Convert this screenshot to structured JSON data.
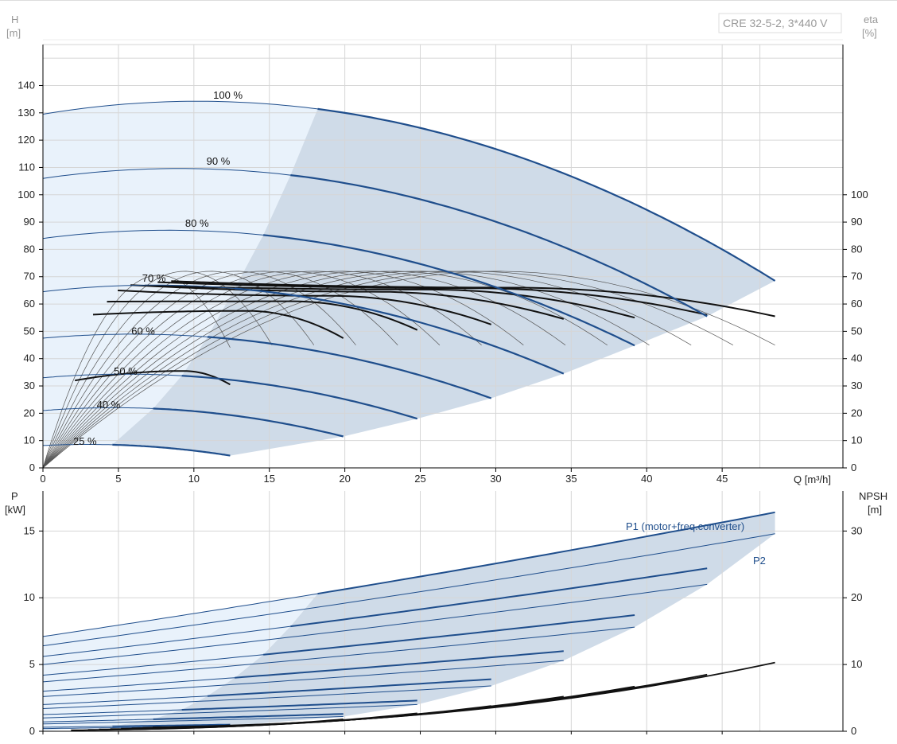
{
  "model_label": "CRE 32-5-2, 3*440 V",
  "colors": {
    "curve_blue": "#1f4e8c",
    "operating_region": "#cfdbe8",
    "light_region": "#e9f2fb",
    "grid": "#d6d6d6",
    "eff_curve": "#111111"
  },
  "chart_data": [
    {
      "type": "line",
      "panel": "pump-head",
      "xlabel": "Q [m³/h]",
      "ylabel_left": [
        "H",
        "[m]"
      ],
      "ylabel_right": [
        "eta",
        "[%]"
      ],
      "xlim": [
        0,
        53
      ],
      "ylim": [
        0,
        155
      ],
      "xticks": [
        0,
        5,
        10,
        15,
        20,
        25,
        30,
        35,
        40,
        45
      ],
      "yticks_left": [
        0,
        10,
        20,
        30,
        40,
        50,
        60,
        70,
        80,
        90,
        100,
        110,
        120,
        130,
        140
      ],
      "yticks_right": [
        0,
        10,
        20,
        30,
        40,
        50,
        60,
        70,
        80,
        90,
        100
      ],
      "speed_curves": [
        {
          "name": "100 %",
          "qmax": 48.5,
          "h0": 129.5,
          "peak_q": 6.2,
          "peak_h": 133.5,
          "end_h": 68.5,
          "qbound": 18.2
        },
        {
          "name": "90 %",
          "qmax": 44.0,
          "h0": 106,
          "peak_q": 6.0,
          "peak_h": 109.2,
          "end_h": 55.5,
          "qbound": 16.4
        },
        {
          "name": "80 %",
          "qmax": 39.2,
          "h0": 84,
          "peak_q": 5.2,
          "peak_h": 86.6,
          "end_h": 44.8,
          "qbound": 14.6
        },
        {
          "name": "70 %",
          "qmax": 34.5,
          "h0": 64.5,
          "peak_q": 4.3,
          "peak_h": 66.5,
          "end_h": 34.5,
          "qbound": 12.7
        },
        {
          "name": "60 %",
          "qmax": 29.7,
          "h0": 47.5,
          "peak_q": 3.9,
          "peak_h": 48.8,
          "end_h": 25.5,
          "qbound": 10.9
        },
        {
          "name": "50 %",
          "qmax": 24.8,
          "h0": 33,
          "peak_q": 3.2,
          "peak_h": 34.1,
          "end_h": 18.0,
          "qbound": 9.2
        },
        {
          "name": "40 %",
          "qmax": 19.9,
          "h0": 21,
          "peak_q": 2.5,
          "peak_h": 21.8,
          "end_h": 11.5,
          "qbound": 7.3
        },
        {
          "name": "25 %",
          "qmax": 12.4,
          "h0": 8.2,
          "peak_q": 1.5,
          "peak_h": 8.5,
          "end_h": 4.5,
          "qbound": 4.6
        }
      ],
      "efficiency_curves": [
        {
          "qmax": 48.5,
          "q_start": 18.2,
          "peak_q": 31.0,
          "peak_eta": 66.0,
          "end_eta": 55.5
        },
        {
          "qmax": 44.0,
          "q_start": 16.4,
          "peak_q": 28.4,
          "peak_eta": 65.8,
          "end_eta": 56.0
        },
        {
          "qmax": 39.2,
          "q_start": 14.6,
          "peak_q": 25.5,
          "peak_eta": 65.3,
          "end_eta": 55.0
        },
        {
          "qmax": 34.5,
          "q_start": 12.7,
          "peak_q": 22.0,
          "peak_eta": 64.5,
          "end_eta": 54.5
        },
        {
          "qmax": 29.7,
          "q_start": 10.9,
          "peak_q": 19.0,
          "peak_eta": 63.0,
          "end_eta": 52.5
        },
        {
          "qmax": 24.8,
          "q_start": 9.2,
          "peak_q": 16.5,
          "peak_eta": 61.0,
          "end_eta": 50.5
        },
        {
          "qmax": 19.9,
          "q_start": 7.3,
          "peak_q": 13.5,
          "peak_eta": 57.5,
          "end_eta": 47.5
        },
        {
          "qmax": 12.4,
          "q_start": 4.6,
          "peak_q": 9.3,
          "peak_eta": 35.5,
          "end_eta": 30.5
        }
      ],
      "eta_envelope": {
        "eta_max": 72.0
      }
    },
    {
      "type": "line",
      "panel": "power-npsh",
      "ylabel_left": [
        "P",
        "[kW]"
      ],
      "ylabel_right": [
        "NPSH",
        "[m]"
      ],
      "xlim": [
        0,
        53
      ],
      "ylim": [
        0,
        18
      ],
      "yticks_left": [
        0,
        5,
        10,
        15
      ],
      "yticks_right": [
        0,
        10,
        20,
        30
      ],
      "npsh_scale_max": 36,
      "p1_label": "P1 (motor+freq.converter)",
      "p2_label": "P2",
      "p1_curves": [
        {
          "qmax": 48.5,
          "p0": 7.1,
          "pend": 16.4,
          "qbound": 18.2
        },
        {
          "qmax": 44.0,
          "p0": 5.6,
          "pend": 12.2,
          "qbound": 16.4
        },
        {
          "qmax": 39.2,
          "p0": 4.2,
          "pend": 8.7,
          "qbound": 14.6
        },
        {
          "qmax": 34.5,
          "p0": 3.0,
          "pend": 6.0,
          "qbound": 12.7
        },
        {
          "qmax": 29.7,
          "p0": 2.0,
          "pend": 3.9,
          "qbound": 10.9
        },
        {
          "qmax": 24.8,
          "p0": 1.25,
          "pend": 2.3,
          "qbound": 9.2
        },
        {
          "qmax": 19.9,
          "p0": 0.7,
          "pend": 1.3,
          "qbound": 7.3
        },
        {
          "qmax": 12.4,
          "p0": 0.3,
          "pend": 0.5,
          "qbound": 4.6
        }
      ],
      "p2_curves": [
        {
          "qmax": 48.5,
          "p0": 6.4,
          "pend": 14.8
        },
        {
          "qmax": 44.0,
          "p0": 5.0,
          "pend": 11.0
        },
        {
          "qmax": 39.2,
          "p0": 3.7,
          "pend": 7.8
        },
        {
          "qmax": 34.5,
          "p0": 2.6,
          "pend": 5.3
        },
        {
          "qmax": 29.7,
          "p0": 1.7,
          "pend": 3.4
        },
        {
          "qmax": 24.8,
          "p0": 1.0,
          "pend": 2.0
        },
        {
          "qmax": 19.9,
          "p0": 0.55,
          "pend": 1.1
        },
        {
          "qmax": 12.4,
          "p0": 0.2,
          "pend": 0.4
        }
      ],
      "npsh_curves": [
        {
          "qmax": 48.5,
          "n0": 0.5,
          "nend": 10.3
        },
        {
          "qmax": 44.0,
          "n0": 0.45,
          "nend": 8.5
        },
        {
          "qmax": 39.2,
          "n0": 0.4,
          "nend": 6.7
        },
        {
          "qmax": 34.5,
          "n0": 0.35,
          "nend": 5.2
        },
        {
          "qmax": 29.7,
          "n0": 0.3,
          "nend": 3.8
        },
        {
          "qmax": 24.8,
          "n0": 0.25,
          "nend": 2.7
        },
        {
          "qmax": 19.9,
          "n0": 0.2,
          "nend": 1.8
        },
        {
          "qmax": 12.4,
          "n0": 0.15,
          "nend": 0.9
        }
      ]
    }
  ]
}
